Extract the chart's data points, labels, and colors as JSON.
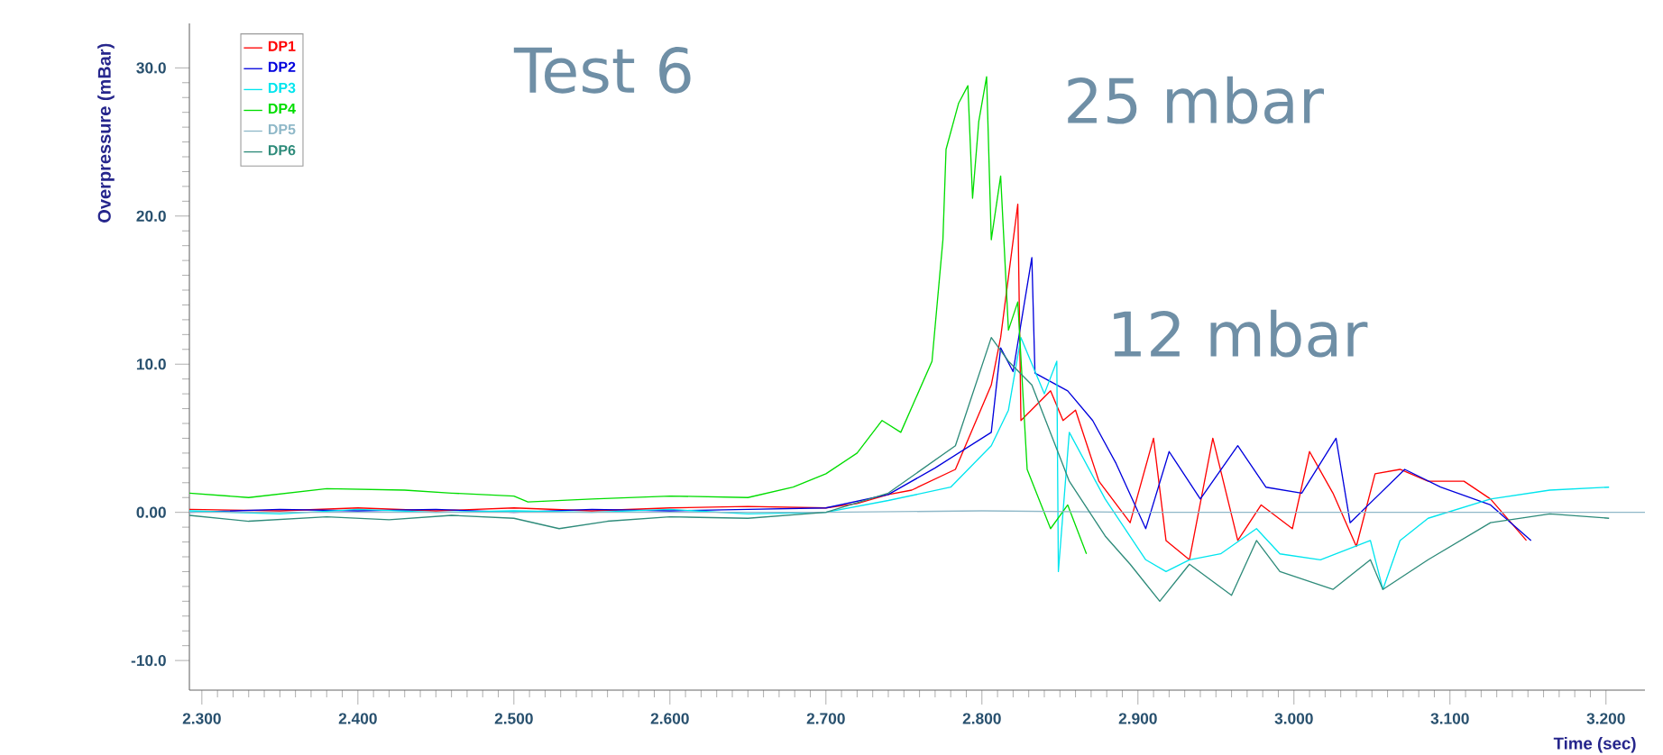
{
  "chart_data": {
    "type": "line",
    "xlabel": "Time (sec)",
    "ylabel": "Overpressure (mBar)",
    "annotations": [
      "Test 6",
      "25 mbar",
      "12 mbar"
    ],
    "xlim": [
      2.292,
      3.225
    ],
    "ylim": [
      -12,
      33
    ],
    "xticks": [
      {
        "value": 2.3,
        "label": "2.300"
      },
      {
        "value": 2.4,
        "label": "2.400"
      },
      {
        "value": 2.5,
        "label": "2.500"
      },
      {
        "value": 2.6,
        "label": "2.600"
      },
      {
        "value": 2.7,
        "label": "2.700"
      },
      {
        "value": 2.8,
        "label": "2.800"
      },
      {
        "value": 2.9,
        "label": "2.900"
      },
      {
        "value": 3.0,
        "label": "3.000"
      },
      {
        "value": 3.1,
        "label": "3.100"
      },
      {
        "value": 3.2,
        "label": "3.200"
      }
    ],
    "yticks": [
      {
        "value": -10,
        "label": "-10.0"
      },
      {
        "value": 0,
        "label": "0.00"
      },
      {
        "value": 10,
        "label": "10.0"
      },
      {
        "value": 20,
        "label": "20.0"
      },
      {
        "value": 30,
        "label": "30.0"
      }
    ],
    "legend": "top left",
    "series": [
      {
        "name": "DP1",
        "color": "#ff0000",
        "x": [
          2.292,
          2.35,
          2.4,
          2.45,
          2.5,
          2.55,
          2.6,
          2.65,
          2.7,
          2.72,
          2.74,
          2.755,
          2.783,
          2.806,
          2.812,
          2.823,
          2.825,
          2.844,
          2.852,
          2.86,
          2.875,
          2.895,
          2.91,
          2.918,
          2.933,
          2.948,
          2.964,
          2.979,
          2.999,
          3.01,
          3.025,
          3.04,
          3.052,
          3.068,
          3.086,
          3.109,
          3.126,
          3.149
        ],
        "values": [
          0.2,
          0.1,
          0.3,
          0.1,
          0.3,
          0.1,
          0.3,
          0.4,
          0.3,
          0.6,
          1.2,
          1.5,
          2.9,
          8.6,
          11.8,
          20.8,
          6.2,
          8.2,
          6.2,
          6.9,
          2.1,
          -0.7,
          5.0,
          -1.9,
          -3.2,
          5.0,
          -1.9,
          0.5,
          -1.1,
          4.1,
          1.3,
          -2.3,
          2.6,
          2.9,
          2.1,
          2.1,
          0.9,
          -1.9
        ]
      },
      {
        "name": "DP2",
        "color": "#0000dd",
        "x": [
          2.292,
          2.35,
          2.4,
          2.45,
          2.5,
          2.55,
          2.6,
          2.65,
          2.7,
          2.74,
          2.77,
          2.806,
          2.812,
          2.82,
          2.832,
          2.834,
          2.855,
          2.871,
          2.886,
          2.905,
          2.92,
          2.94,
          2.964,
          2.982,
          3.005,
          3.027,
          3.036,
          3.071,
          3.094,
          3.126,
          3.152
        ],
        "values": [
          0.0,
          0.2,
          0.1,
          0.2,
          0.0,
          0.2,
          0.1,
          0.2,
          0.3,
          1.2,
          3.0,
          5.4,
          11.1,
          9.5,
          17.2,
          9.4,
          8.2,
          6.2,
          3.3,
          -1.1,
          4.1,
          0.9,
          4.5,
          1.7,
          1.3,
          5.0,
          -0.7,
          2.9,
          1.7,
          0.5,
          -1.9
        ]
      },
      {
        "name": "DP3",
        "color": "#00e5ee",
        "x": [
          2.292,
          2.35,
          2.4,
          2.45,
          2.5,
          2.55,
          2.6,
          2.65,
          2.7,
          2.74,
          2.78,
          2.806,
          2.817,
          2.825,
          2.84,
          2.848,
          2.849,
          2.856,
          2.879,
          2.905,
          2.918,
          2.933,
          2.953,
          2.976,
          2.991,
          3.017,
          3.049,
          3.057,
          3.068,
          3.086,
          3.126,
          3.164,
          3.202
        ],
        "values": [
          0.1,
          -0.1,
          0.2,
          0.0,
          0.1,
          0.0,
          0.2,
          -0.1,
          0.0,
          0.8,
          1.7,
          4.5,
          6.9,
          11.8,
          8.0,
          10.2,
          -4.0,
          5.4,
          0.9,
          -3.2,
          -4.0,
          -3.2,
          -2.8,
          -1.1,
          -2.8,
          -3.2,
          -1.9,
          -5.2,
          -1.9,
          -0.4,
          0.9,
          1.5,
          1.7
        ]
      },
      {
        "name": "DP4",
        "color": "#00dd00",
        "x": [
          2.292,
          2.33,
          2.38,
          2.43,
          2.46,
          2.5,
          2.509,
          2.55,
          2.6,
          2.65,
          2.679,
          2.7,
          2.72,
          2.736,
          2.748,
          2.768,
          2.775,
          2.777,
          2.785,
          2.791,
          2.794,
          2.798,
          2.803,
          2.806,
          2.812,
          2.817,
          2.823,
          2.829,
          2.844,
          2.855,
          2.867
        ],
        "values": [
          1.3,
          1.0,
          1.6,
          1.5,
          1.3,
          1.1,
          0.7,
          0.9,
          1.1,
          1.0,
          1.7,
          2.6,
          4.0,
          6.2,
          5.4,
          10.2,
          18.4,
          24.5,
          27.6,
          28.8,
          21.2,
          26.4,
          29.4,
          18.4,
          22.7,
          12.3,
          14.2,
          2.9,
          -1.1,
          0.5,
          -2.8
        ]
      },
      {
        "name": "DP5",
        "color": "#8fb8c8",
        "x": [
          2.292,
          2.4,
          2.5,
          2.6,
          2.7,
          2.8,
          2.9,
          3.0,
          3.1,
          3.225
        ],
        "values": [
          0.0,
          0.0,
          0.0,
          0.0,
          0.0,
          0.1,
          0.0,
          0.0,
          0.0,
          0.0
        ]
      },
      {
        "name": "DP6",
        "color": "#2e8b7a",
        "x": [
          2.292,
          2.33,
          2.38,
          2.42,
          2.46,
          2.5,
          2.529,
          2.56,
          2.6,
          2.65,
          2.7,
          2.74,
          2.783,
          2.806,
          2.817,
          2.832,
          2.856,
          2.879,
          2.895,
          2.914,
          2.933,
          2.96,
          2.976,
          2.991,
          3.025,
          3.049,
          3.057,
          3.086,
          3.126,
          3.164,
          3.202
        ],
        "values": [
          -0.2,
          -0.6,
          -0.3,
          -0.5,
          -0.2,
          -0.4,
          -1.1,
          -0.6,
          -0.3,
          -0.4,
          0.0,
          1.3,
          4.5,
          11.8,
          10.2,
          8.6,
          2.1,
          -1.6,
          -3.5,
          -6.0,
          -3.5,
          -5.6,
          -1.9,
          -4.0,
          -5.2,
          -3.2,
          -5.2,
          -3.2,
          -0.7,
          -0.1,
          -0.4
        ]
      }
    ]
  }
}
